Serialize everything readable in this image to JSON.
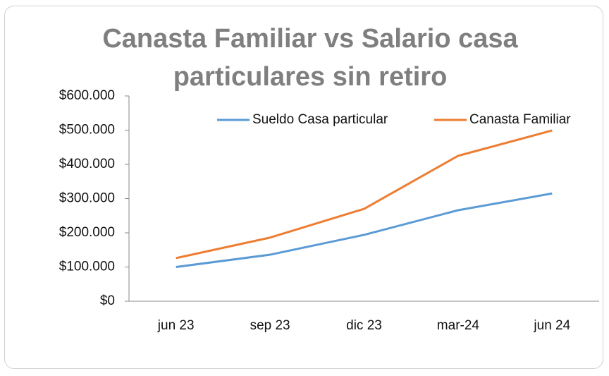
{
  "chart_data": {
    "type": "line",
    "title": "Canasta Familiar vs Salario casa particulares sin retiro",
    "categories": [
      "jun 23",
      "sep 23",
      "dic 23",
      "mar-24",
      "jun 24"
    ],
    "series": [
      {
        "name": "Sueldo Casa particular",
        "color": "#5b9bd5",
        "values": [
          100000,
          136000,
          194000,
          266000,
          315000
        ]
      },
      {
        "name": "Canasta Familiar",
        "color": "#ed7d31",
        "values": [
          126000,
          186000,
          270000,
          425000,
          499000
        ]
      }
    ],
    "ylim": [
      0,
      600000
    ],
    "yticks": [
      {
        "value": 0,
        "label": "$0"
      },
      {
        "value": 100000,
        "label": "$100.000"
      },
      {
        "value": 200000,
        "label": "$200.000"
      },
      {
        "value": 300000,
        "label": "$300.000"
      },
      {
        "value": 400000,
        "label": "$400.000"
      },
      {
        "value": 500000,
        "label": "$500.000"
      },
      {
        "value": 600000,
        "label": "$600.000"
      }
    ],
    "grid": false,
    "legend": "top-right"
  }
}
